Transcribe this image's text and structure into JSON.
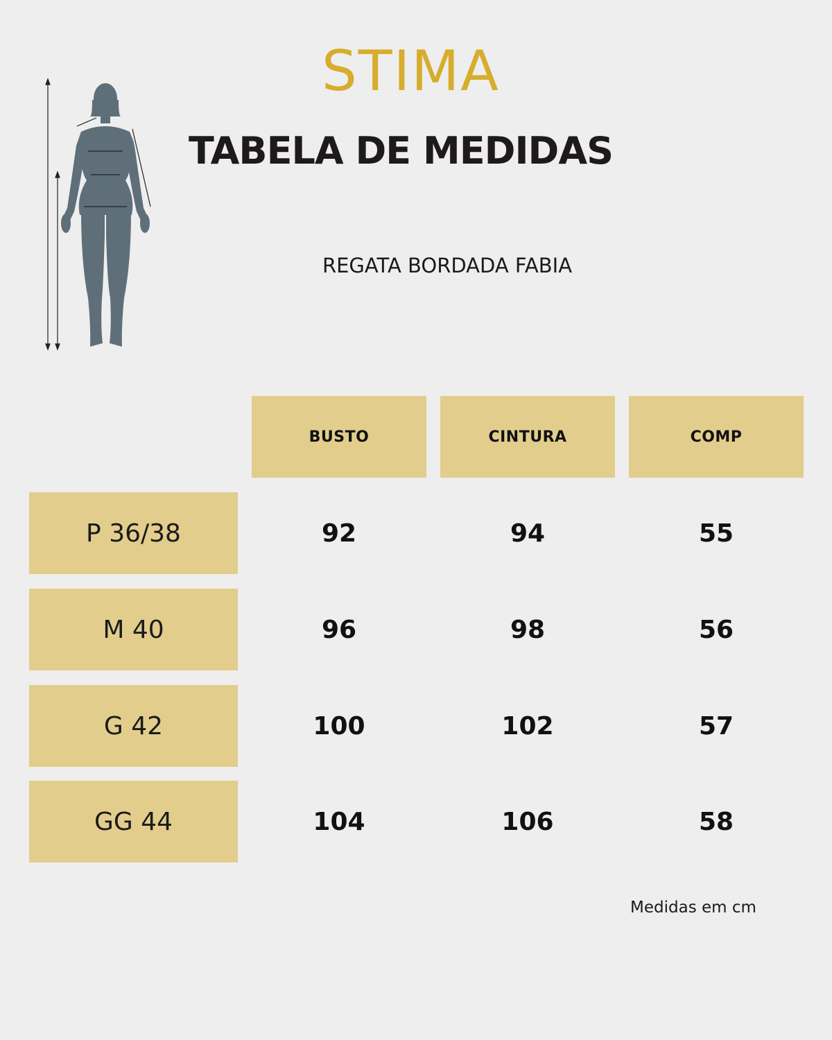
{
  "brand": {
    "name": "STIMA",
    "color": "#d6ad2c"
  },
  "title": "TABELA DE MEDIDAS",
  "product": "REGATA BORDADA FABIA",
  "figure_icon": "female-body-measurement-icon",
  "table": {
    "columns": [
      "BUSTO",
      "CINTURA",
      "COMP"
    ],
    "rows": [
      {
        "size": "P 36/38",
        "values": [
          "92",
          "94",
          "55"
        ]
      },
      {
        "size": "M 40",
        "values": [
          "96",
          "98",
          "56"
        ]
      },
      {
        "size": "G 42",
        "values": [
          "100",
          "102",
          "57"
        ]
      },
      {
        "size": "GG 44",
        "values": [
          "104",
          "106",
          "58"
        ]
      }
    ],
    "header_color": "#e2cd8c"
  },
  "footnote": "Medidas em cm"
}
